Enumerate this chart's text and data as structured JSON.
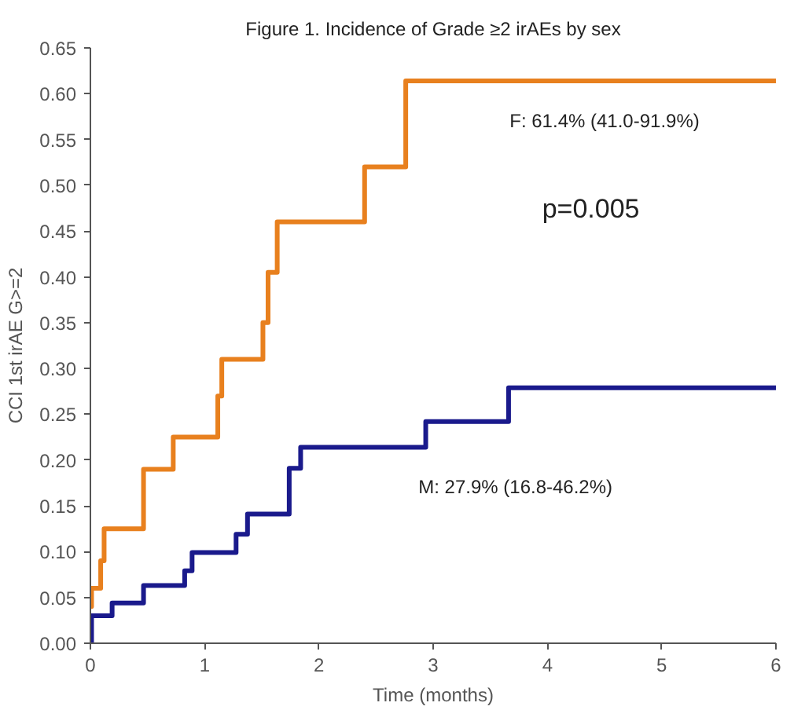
{
  "chart_data": {
    "type": "step",
    "title": "Figure 1. Incidence of Grade ≥2 irAEs by sex",
    "xlabel": "Time (months)",
    "ylabel": "CCI 1st irAE G>=2",
    "series": [
      {
        "color": "#e8801e",
        "x": [
          0,
          0.01,
          0.09,
          0.12,
          0.465,
          0.725,
          1.115,
          1.15,
          1.51,
          1.555,
          1.635,
          2.4,
          2.76,
          6
        ],
        "values": [
          0.04,
          0.06,
          0.09,
          0.125,
          0.19,
          0.225,
          0.27,
          0.31,
          0.35,
          0.405,
          0.46,
          0.52,
          0.614,
          0.614
        ]
      },
      {
        "color": "#1a1a8c",
        "x": [
          0,
          0.01,
          0.19,
          0.465,
          0.825,
          0.89,
          1.275,
          1.375,
          1.74,
          1.84,
          2.935,
          3.66,
          6
        ],
        "values": [
          0,
          0.03,
          0.044,
          0.063,
          0.079,
          0.099,
          0.119,
          0.141,
          0.191,
          0.214,
          0.242,
          0.279,
          0.279
        ]
      }
    ],
    "annotations": [
      "F: 61.4% (41.0-91.9%)",
      "p=0.005",
      "M: 27.9% (16.8-46.2%)"
    ],
    "xlim": [
      0,
      6
    ],
    "ylim": [
      0,
      0.65
    ],
    "xticks": [
      0,
      1,
      2,
      3,
      4,
      5,
      6
    ],
    "yticks": [
      {
        "value": 0,
        "label": "0.00"
      },
      {
        "value": 0.05,
        "label": "0.05"
      },
      {
        "value": 0.1,
        "label": "0.10"
      },
      {
        "value": 0.15,
        "label": "0.15"
      },
      {
        "value": 0.2,
        "label": "0.20"
      },
      {
        "value": 0.25,
        "label": "0.25"
      },
      {
        "value": 0.3,
        "label": "0.30"
      },
      {
        "value": 0.35,
        "label": "0.35"
      },
      {
        "value": 0.4,
        "label": "0.40"
      },
      {
        "value": 0.45,
        "label": "0.45"
      },
      {
        "value": 0.5,
        "label": "0.50"
      },
      {
        "value": 0.55,
        "label": "0.55"
      },
      {
        "value": 0.6,
        "label": "0.60"
      },
      {
        "value": 0.65,
        "label": "0.65"
      }
    ],
    "line_style": "solid"
  }
}
